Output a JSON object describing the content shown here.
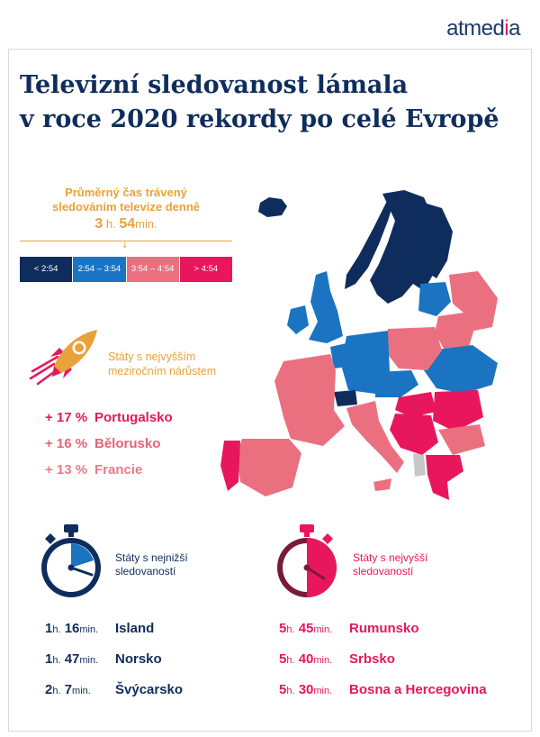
{
  "brand": {
    "name_left": "atmed",
    "name_accent": "i",
    "name_right": "a"
  },
  "title": {
    "line1": "Televizní sledovanost lámala",
    "line2": "v roce 2020 rekordy po celé Evropě"
  },
  "legend": {
    "heading_line1": "Průměrný čas trávený",
    "heading_line2": "sledováním televize denně",
    "avg_hours": "3",
    "hours_unit": "h.",
    "avg_minutes": "54",
    "minutes_unit": "min.",
    "arrow": "↓",
    "scale": [
      {
        "label": "< 2:54",
        "color": "#0f2d5c"
      },
      {
        "label": "2:54 – 3:54",
        "color": "#1b74c2"
      },
      {
        "label": "3:54 – 4:54",
        "color": "#ea7080"
      },
      {
        "label": "> 4:54",
        "color": "#e8175d"
      }
    ]
  },
  "growth": {
    "label_line1": "Státy s nejvyšším",
    "label_line2": "meziročním nárůstem",
    "items": [
      {
        "pct": "+ 17 %",
        "country": "Portugalsko"
      },
      {
        "pct": "+ 16 %",
        "country": "Bělorusko"
      },
      {
        "pct": "+ 13 %",
        "country": "Francie"
      }
    ]
  },
  "lowest": {
    "label_line1": "Státy s nejnižší",
    "label_line2": "sledovaností",
    "items": [
      {
        "h": "1",
        "hu": "h.",
        "m": "16",
        "mu": "min.",
        "country": "Island"
      },
      {
        "h": "1",
        "hu": "h.",
        "m": "47",
        "mu": "min.",
        "country": "Norsko"
      },
      {
        "h": "2",
        "hu": "h.",
        "m": "7",
        "mu": "min.",
        "country": "Švýcarsko"
      }
    ]
  },
  "highest": {
    "label_line1": "Státy s nejvyšší",
    "label_line2": "sledovaností",
    "items": [
      {
        "h": "5",
        "hu": "h.",
        "m": "45",
        "mu": "min.",
        "country": "Rumunsko"
      },
      {
        "h": "5",
        "hu": "h.",
        "m": "40",
        "mu": "min.",
        "country": "Srbsko"
      },
      {
        "h": "5",
        "hu": "h.",
        "m": "30",
        "mu": "min.",
        "country": "Bosna a Hercegovina"
      }
    ]
  },
  "colors": {
    "navy": "#0f2d5c",
    "blue": "#1b74c2",
    "pink_light": "#ea7080",
    "pink": "#e8175d",
    "orange": "#e9a23b",
    "gray": "#c8c8c8"
  },
  "icons": {
    "rocket": "rocket-icon",
    "stopwatch_low": "stopwatch-blue-icon",
    "stopwatch_high": "stopwatch-pink-icon",
    "map": "europe-map"
  }
}
